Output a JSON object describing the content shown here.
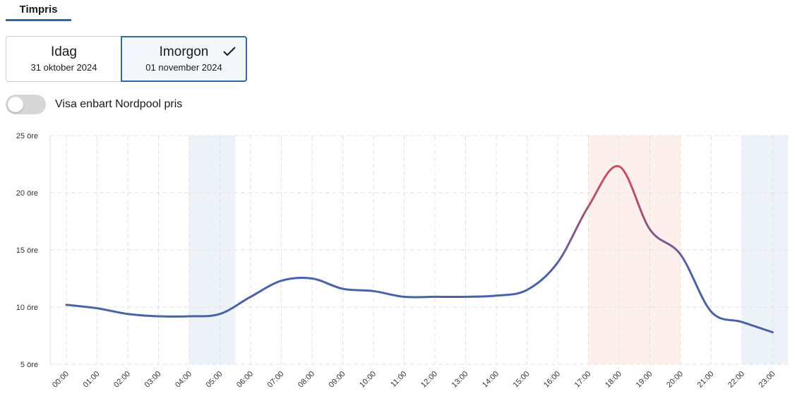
{
  "tab": {
    "label": "Timpris"
  },
  "days": [
    {
      "name": "Idag",
      "date": "31 oktober 2024",
      "selected": false
    },
    {
      "name": "Imorgon",
      "date": "01 november 2024",
      "selected": true
    }
  ],
  "toggle": {
    "label": "Visa enbart Nordpool pris",
    "on": false
  },
  "icons": {
    "check": "check-icon"
  },
  "colors": {
    "accent": "#2e6aa8",
    "line_low": "#4a62a8",
    "line_high": "#c94e5e",
    "cheap_band": "#edf2f8",
    "expensive_band": "#fdf0ec"
  },
  "chart_data": {
    "type": "line",
    "categories": [
      "00:00",
      "01:00",
      "02:00",
      "03:00",
      "04:00",
      "05:00",
      "06:00",
      "07:00",
      "08:00",
      "09:00",
      "10:00",
      "11:00",
      "12:00",
      "13:00",
      "14:00",
      "15:00",
      "16:00",
      "17:00",
      "18:00",
      "19:00",
      "20:00",
      "21:00",
      "22:00",
      "23:00"
    ],
    "y_tick_labels": [
      "5 öre",
      "10 öre",
      "15 öre",
      "20 öre",
      "25 öre"
    ],
    "ylim": [
      5,
      25
    ],
    "y_ticks": [
      5,
      10,
      15,
      20,
      25
    ],
    "grid": true,
    "series": [
      {
        "values": [
          10.2,
          9.9,
          9.4,
          9.2,
          9.2,
          9.4,
          10.9,
          12.3,
          12.5,
          11.6,
          11.4,
          10.9,
          10.9,
          10.9,
          11.0,
          11.5,
          13.9,
          18.8,
          22.3,
          16.8,
          14.6,
          9.6,
          8.7,
          7.8
        ]
      }
    ],
    "cheap_ranges": [
      [
        4,
        5
      ],
      [
        22,
        23
      ]
    ],
    "expensive_range": [
      17,
      20
    ]
  }
}
